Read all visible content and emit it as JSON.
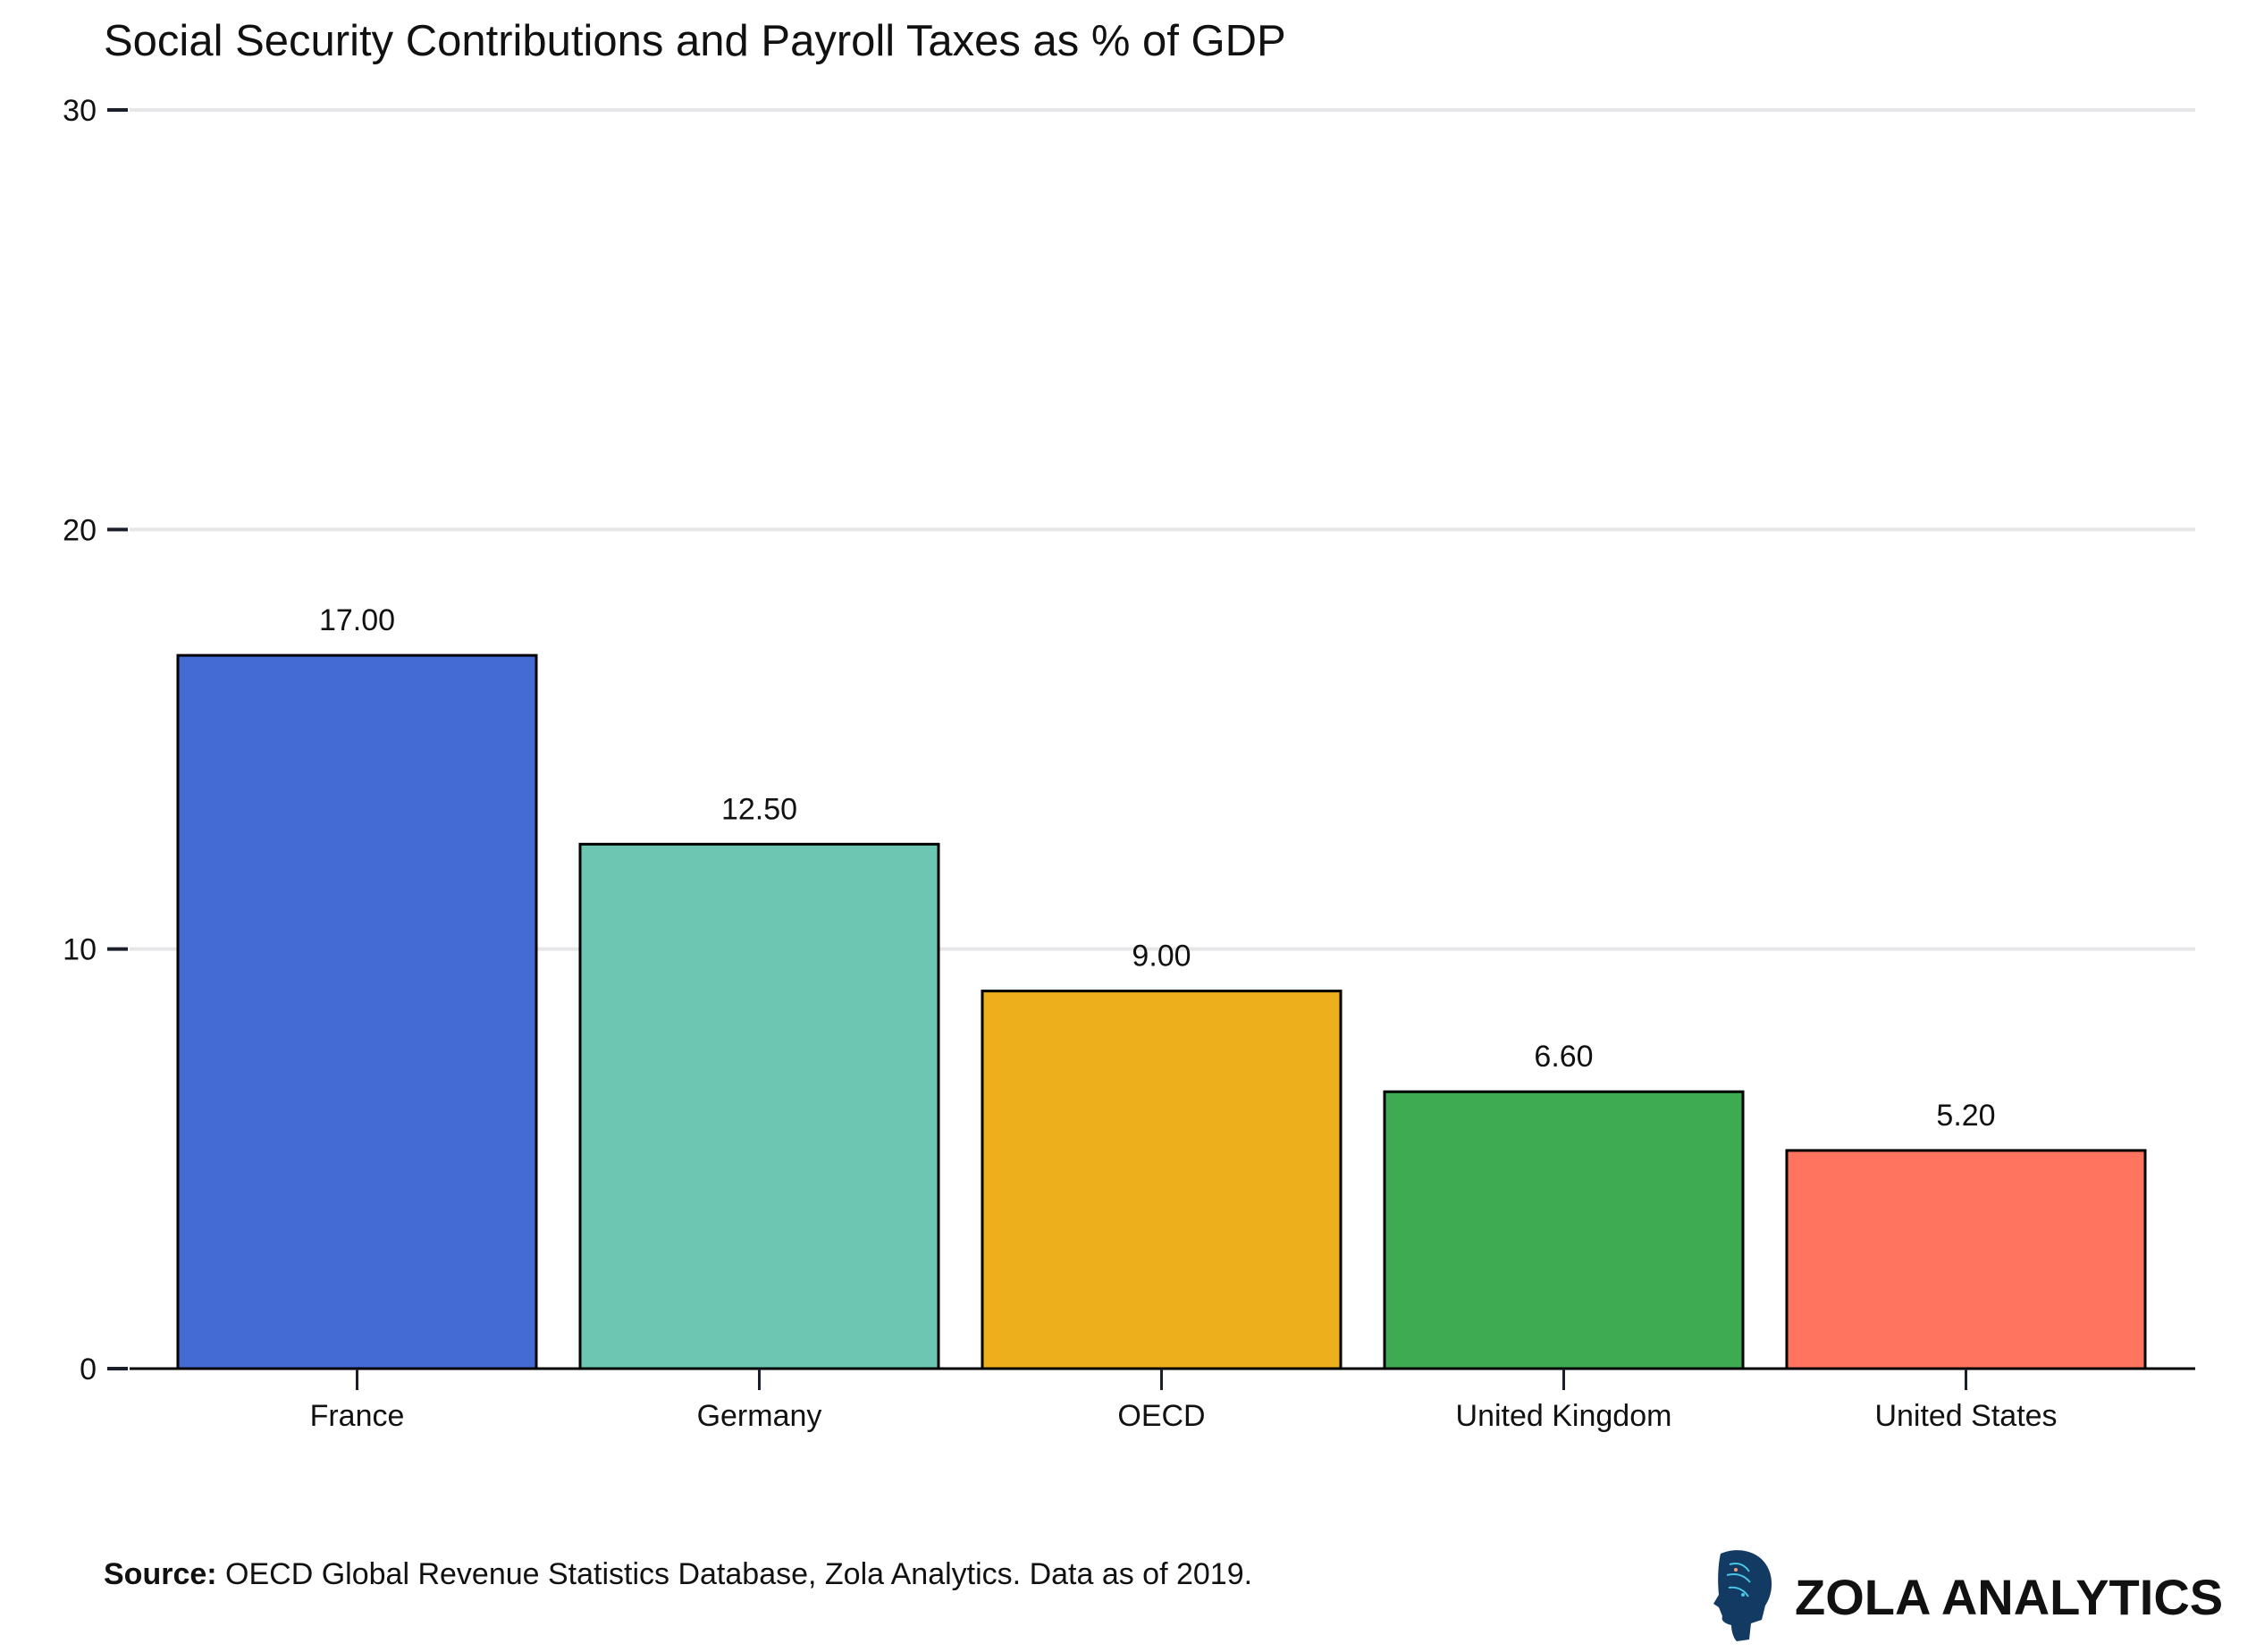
{
  "chart_data": {
    "type": "bar",
    "title": "Social Security Contributions and Payroll Taxes as % of GDP",
    "xlabel": "",
    "ylabel": "",
    "categories": [
      "France",
      "Germany",
      "OECD",
      "United Kingdom",
      "United States"
    ],
    "values": [
      17.0,
      12.5,
      9.0,
      6.6,
      5.2
    ],
    "data_labels": [
      "17.00",
      "12.50",
      "9.00",
      "6.60",
      "5.20"
    ],
    "colors": [
      "#446bd4",
      "#6dc6b1",
      "#edb01c",
      "#3eaa52",
      "#ff745e"
    ],
    "ylim": [
      0,
      30
    ],
    "yticks": [
      0,
      10,
      20,
      30
    ],
    "grid": true,
    "legend": "none"
  },
  "footer": {
    "source_label": "Source:",
    "source_text": " OECD Global Revenue Statistics Database, Zola Analytics. Data as of 2019.",
    "brand": "ZOLA ANALYTICS"
  }
}
